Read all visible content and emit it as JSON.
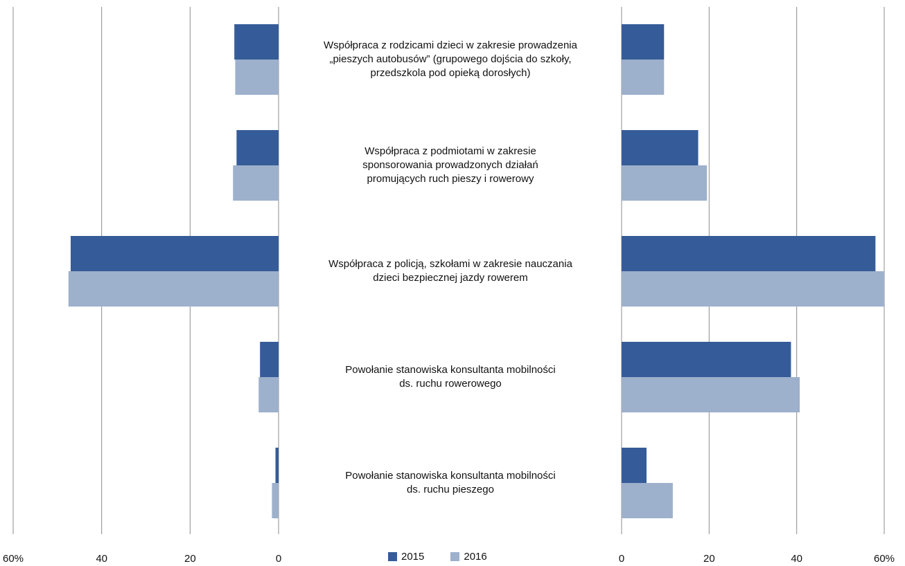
{
  "chart_data": {
    "type": "bar",
    "orientation": "horizontal",
    "layout": "butterfly",
    "categories": [
      "Współpraca z rodzicami dzieci w zakresie prowadzenia\n„pieszych autobusów” (grupowego dojścia do szkoły,\nprzedszkola pod opieką dorosłych)",
      "Współpraca z podmiotami w zakresie\nsponsorowania prowadzonych działań\npromujących ruch pieszy i rowerowy",
      "Współpraca z policją, szkołami w zakresie nauczania\ndzieci bezpiecznej jazdy rowerem",
      "Powołanie stanowiska konsultanta mobilności\nds. ruchu rowerowego",
      "Powołanie stanowiska konsultanta mobilności\nds. ruchu pieszego"
    ],
    "series": [
      {
        "name": "2015",
        "color": "#355C98",
        "left_values": [
          10,
          9.5,
          47,
          4.2,
          0.7
        ],
        "right_values": [
          9.7,
          17.5,
          58,
          38.7,
          5.7
        ]
      },
      {
        "name": "2016",
        "color": "#9DB0CC",
        "left_values": [
          9.8,
          10.3,
          47.5,
          4.5,
          1.5
        ],
        "right_values": [
          9.7,
          19.5,
          60,
          40.7,
          11.7
        ]
      }
    ],
    "xlim": [
      0,
      60
    ],
    "left_axis_ticks": [
      "60%",
      "40",
      "20",
      "0"
    ],
    "right_axis_ticks": [
      "0",
      "20",
      "40",
      "60%"
    ],
    "grid": true,
    "legend_position": "bottom-center"
  }
}
